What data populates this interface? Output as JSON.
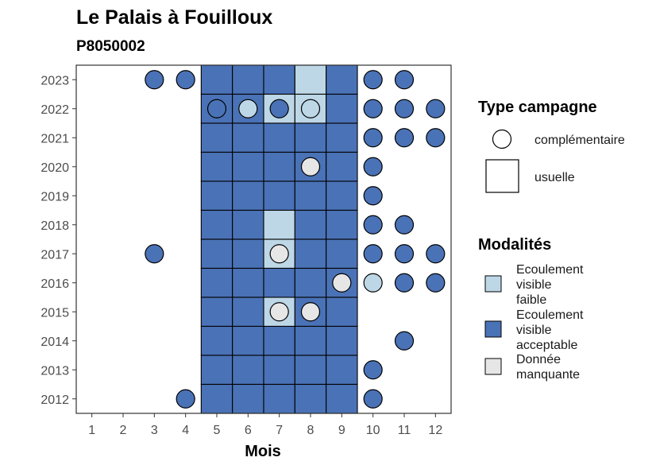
{
  "chart_data": {
    "type": "heatmap",
    "title": "Le Palais à Fouilloux",
    "subtitle": "P8050002",
    "xlabel": "Mois",
    "ylabel": "",
    "x_ticks": [
      1,
      2,
      3,
      4,
      5,
      6,
      7,
      8,
      9,
      10,
      11,
      12
    ],
    "y_ticks": [
      2012,
      2013,
      2014,
      2015,
      2016,
      2017,
      2018,
      2019,
      2020,
      2021,
      2022,
      2023
    ],
    "xlim": [
      0.5,
      12.5
    ],
    "ylim": [
      2011.5,
      2023.5
    ],
    "colors": {
      "faible": "#bdd7e7",
      "acceptable": "#4a72b6",
      "manquante": "#e6e6e6",
      "border": "#000000"
    },
    "legend_type": {
      "title": "Type campagne",
      "items": [
        {
          "label": "complémentaire",
          "shape": "circle"
        },
        {
          "label": "usuelle",
          "shape": "square"
        }
      ]
    },
    "legend_modalites": {
      "title": "Modalités",
      "items": [
        {
          "key": "faible",
          "lines": [
            "Ecoulement",
            "visible",
            "faible"
          ]
        },
        {
          "key": "acceptable",
          "lines": [
            "Ecoulement",
            "visible",
            "acceptable"
          ]
        },
        {
          "key": "manquante",
          "lines": [
            "Donnée",
            "manquante"
          ]
        }
      ]
    },
    "usuelle": [
      {
        "year": 2023,
        "month": 5,
        "m": "acceptable"
      },
      {
        "year": 2023,
        "month": 6,
        "m": "acceptable"
      },
      {
        "year": 2023,
        "month": 7,
        "m": "acceptable"
      },
      {
        "year": 2023,
        "month": 8,
        "m": "faible"
      },
      {
        "year": 2023,
        "month": 9,
        "m": "acceptable"
      },
      {
        "year": 2022,
        "month": 5,
        "m": "acceptable"
      },
      {
        "year": 2022,
        "month": 6,
        "m": "acceptable"
      },
      {
        "year": 2022,
        "month": 7,
        "m": "faible"
      },
      {
        "year": 2022,
        "month": 8,
        "m": "faible"
      },
      {
        "year": 2022,
        "month": 9,
        "m": "acceptable"
      },
      {
        "year": 2021,
        "month": 5,
        "m": "acceptable"
      },
      {
        "year": 2021,
        "month": 6,
        "m": "acceptable"
      },
      {
        "year": 2021,
        "month": 7,
        "m": "acceptable"
      },
      {
        "year": 2021,
        "month": 8,
        "m": "acceptable"
      },
      {
        "year": 2021,
        "month": 9,
        "m": "acceptable"
      },
      {
        "year": 2020,
        "month": 5,
        "m": "acceptable"
      },
      {
        "year": 2020,
        "month": 6,
        "m": "acceptable"
      },
      {
        "year": 2020,
        "month": 7,
        "m": "acceptable"
      },
      {
        "year": 2020,
        "month": 8,
        "m": "acceptable"
      },
      {
        "year": 2020,
        "month": 9,
        "m": "acceptable"
      },
      {
        "year": 2019,
        "month": 5,
        "m": "acceptable"
      },
      {
        "year": 2019,
        "month": 6,
        "m": "acceptable"
      },
      {
        "year": 2019,
        "month": 7,
        "m": "acceptable"
      },
      {
        "year": 2019,
        "month": 8,
        "m": "acceptable"
      },
      {
        "year": 2019,
        "month": 9,
        "m": "acceptable"
      },
      {
        "year": 2018,
        "month": 5,
        "m": "acceptable"
      },
      {
        "year": 2018,
        "month": 6,
        "m": "acceptable"
      },
      {
        "year": 2018,
        "month": 7,
        "m": "faible"
      },
      {
        "year": 2018,
        "month": 8,
        "m": "acceptable"
      },
      {
        "year": 2018,
        "month": 9,
        "m": "acceptable"
      },
      {
        "year": 2017,
        "month": 5,
        "m": "acceptable"
      },
      {
        "year": 2017,
        "month": 6,
        "m": "acceptable"
      },
      {
        "year": 2017,
        "month": 7,
        "m": "faible"
      },
      {
        "year": 2017,
        "month": 8,
        "m": "acceptable"
      },
      {
        "year": 2017,
        "month": 9,
        "m": "acceptable"
      },
      {
        "year": 2016,
        "month": 5,
        "m": "acceptable"
      },
      {
        "year": 2016,
        "month": 6,
        "m": "acceptable"
      },
      {
        "year": 2016,
        "month": 7,
        "m": "acceptable"
      },
      {
        "year": 2016,
        "month": 8,
        "m": "acceptable"
      },
      {
        "year": 2016,
        "month": 9,
        "m": "acceptable"
      },
      {
        "year": 2015,
        "month": 5,
        "m": "acceptable"
      },
      {
        "year": 2015,
        "month": 6,
        "m": "acceptable"
      },
      {
        "year": 2015,
        "month": 7,
        "m": "faible"
      },
      {
        "year": 2015,
        "month": 8,
        "m": "acceptable"
      },
      {
        "year": 2015,
        "month": 9,
        "m": "acceptable"
      },
      {
        "year": 2014,
        "month": 5,
        "m": "acceptable"
      },
      {
        "year": 2014,
        "month": 6,
        "m": "acceptable"
      },
      {
        "year": 2014,
        "month": 7,
        "m": "acceptable"
      },
      {
        "year": 2014,
        "month": 8,
        "m": "acceptable"
      },
      {
        "year": 2014,
        "month": 9,
        "m": "acceptable"
      },
      {
        "year": 2013,
        "month": 5,
        "m": "acceptable"
      },
      {
        "year": 2013,
        "month": 6,
        "m": "acceptable"
      },
      {
        "year": 2013,
        "month": 7,
        "m": "acceptable"
      },
      {
        "year": 2013,
        "month": 8,
        "m": "acceptable"
      },
      {
        "year": 2013,
        "month": 9,
        "m": "acceptable"
      },
      {
        "year": 2012,
        "month": 5,
        "m": "acceptable"
      },
      {
        "year": 2012,
        "month": 6,
        "m": "acceptable"
      },
      {
        "year": 2012,
        "month": 7,
        "m": "acceptable"
      },
      {
        "year": 2012,
        "month": 8,
        "m": "acceptable"
      },
      {
        "year": 2012,
        "month": 9,
        "m": "acceptable"
      }
    ],
    "complementaire": [
      {
        "year": 2023,
        "month": 3,
        "m": "acceptable"
      },
      {
        "year": 2023,
        "month": 4,
        "m": "acceptable"
      },
      {
        "year": 2023,
        "month": 10,
        "m": "acceptable"
      },
      {
        "year": 2023,
        "month": 11,
        "m": "acceptable"
      },
      {
        "year": 2022,
        "month": 5,
        "m": "acceptable"
      },
      {
        "year": 2022,
        "month": 6,
        "m": "faible"
      },
      {
        "year": 2022,
        "month": 7,
        "m": "acceptable"
      },
      {
        "year": 2022,
        "month": 8,
        "m": "faible"
      },
      {
        "year": 2022,
        "month": 10,
        "m": "acceptable"
      },
      {
        "year": 2022,
        "month": 11,
        "m": "acceptable"
      },
      {
        "year": 2022,
        "month": 12,
        "m": "acceptable"
      },
      {
        "year": 2021,
        "month": 10,
        "m": "acceptable"
      },
      {
        "year": 2021,
        "month": 11,
        "m": "acceptable"
      },
      {
        "year": 2021,
        "month": 12,
        "m": "acceptable"
      },
      {
        "year": 2020,
        "month": 8,
        "m": "manquante"
      },
      {
        "year": 2020,
        "month": 10,
        "m": "acceptable"
      },
      {
        "year": 2019,
        "month": 10,
        "m": "acceptable"
      },
      {
        "year": 2018,
        "month": 10,
        "m": "acceptable"
      },
      {
        "year": 2018,
        "month": 11,
        "m": "acceptable"
      },
      {
        "year": 2017,
        "month": 3,
        "m": "acceptable"
      },
      {
        "year": 2017,
        "month": 7,
        "m": "manquante"
      },
      {
        "year": 2017,
        "month": 10,
        "m": "acceptable"
      },
      {
        "year": 2017,
        "month": 11,
        "m": "acceptable"
      },
      {
        "year": 2017,
        "month": 12,
        "m": "acceptable"
      },
      {
        "year": 2016,
        "month": 9,
        "m": "manquante"
      },
      {
        "year": 2016,
        "month": 10,
        "m": "faible"
      },
      {
        "year": 2016,
        "month": 11,
        "m": "acceptable"
      },
      {
        "year": 2016,
        "month": 12,
        "m": "acceptable"
      },
      {
        "year": 2015,
        "month": 7,
        "m": "manquante"
      },
      {
        "year": 2015,
        "month": 8,
        "m": "manquante"
      },
      {
        "year": 2014,
        "month": 11,
        "m": "acceptable"
      },
      {
        "year": 2013,
        "month": 10,
        "m": "acceptable"
      },
      {
        "year": 2012,
        "month": 4,
        "m": "acceptable"
      },
      {
        "year": 2012,
        "month": 10,
        "m": "acceptable"
      }
    ]
  }
}
